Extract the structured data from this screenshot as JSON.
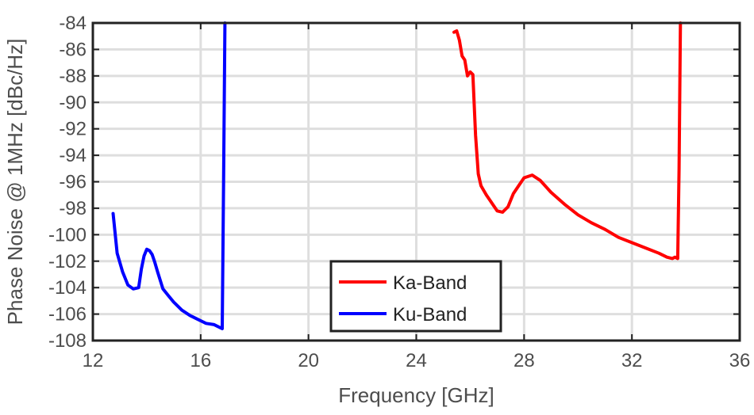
{
  "chart_data": {
    "type": "line",
    "xlabel": "Frequency [GHz]",
    "ylabel": "Phase Noise @ 1MHz [dBc/Hz]",
    "xlim": [
      12,
      36
    ],
    "ylim": [
      -108,
      -84
    ],
    "xticks": [
      12,
      16,
      20,
      24,
      28,
      32,
      36
    ],
    "yticks": [
      -84,
      -86,
      -88,
      -90,
      -92,
      -94,
      -96,
      -98,
      -100,
      -102,
      -104,
      -106,
      -108
    ],
    "grid": true,
    "legend_position": "bottom-center",
    "series": [
      {
        "name": "Ka-Band",
        "color": "#ff0000",
        "x": [
          25.4,
          25.5,
          25.6,
          25.7,
          25.8,
          25.9,
          26.0,
          26.1,
          26.2,
          26.3,
          26.4,
          26.6,
          26.8,
          27.0,
          27.2,
          27.4,
          27.6,
          27.8,
          28.0,
          28.3,
          28.6,
          29.0,
          29.5,
          30.0,
          30.5,
          31.0,
          31.5,
          32.0,
          32.5,
          33.0,
          33.3,
          33.5,
          33.6,
          33.7,
          33.75,
          33.8
        ],
        "y": [
          -84.7,
          -84.6,
          -85.3,
          -86.5,
          -86.8,
          -88.0,
          -87.7,
          -87.9,
          -92.5,
          -95.4,
          -96.3,
          -97.0,
          -97.6,
          -98.2,
          -98.3,
          -97.9,
          -96.9,
          -96.3,
          -95.7,
          -95.5,
          -95.9,
          -96.8,
          -97.7,
          -98.5,
          -99.1,
          -99.6,
          -100.2,
          -100.6,
          -101.0,
          -101.4,
          -101.7,
          -101.8,
          -101.7,
          -101.8,
          -95.0,
          -84.0
        ]
      },
      {
        "name": "Ku-Band",
        "color": "#0000ff",
        "x": [
          12.75,
          12.9,
          13.1,
          13.3,
          13.5,
          13.7,
          13.8,
          13.9,
          14.0,
          14.1,
          14.2,
          14.3,
          14.4,
          14.6,
          14.8,
          15.0,
          15.3,
          15.6,
          15.9,
          16.2,
          16.5,
          16.8,
          16.85,
          16.9
        ],
        "y": [
          -98.4,
          -101.4,
          -102.8,
          -103.8,
          -104.1,
          -104.0,
          -102.6,
          -101.6,
          -101.1,
          -101.2,
          -101.5,
          -102.1,
          -102.8,
          -104.1,
          -104.6,
          -105.1,
          -105.7,
          -106.1,
          -106.4,
          -106.7,
          -106.8,
          -107.1,
          -96.0,
          -84.0
        ]
      }
    ]
  }
}
